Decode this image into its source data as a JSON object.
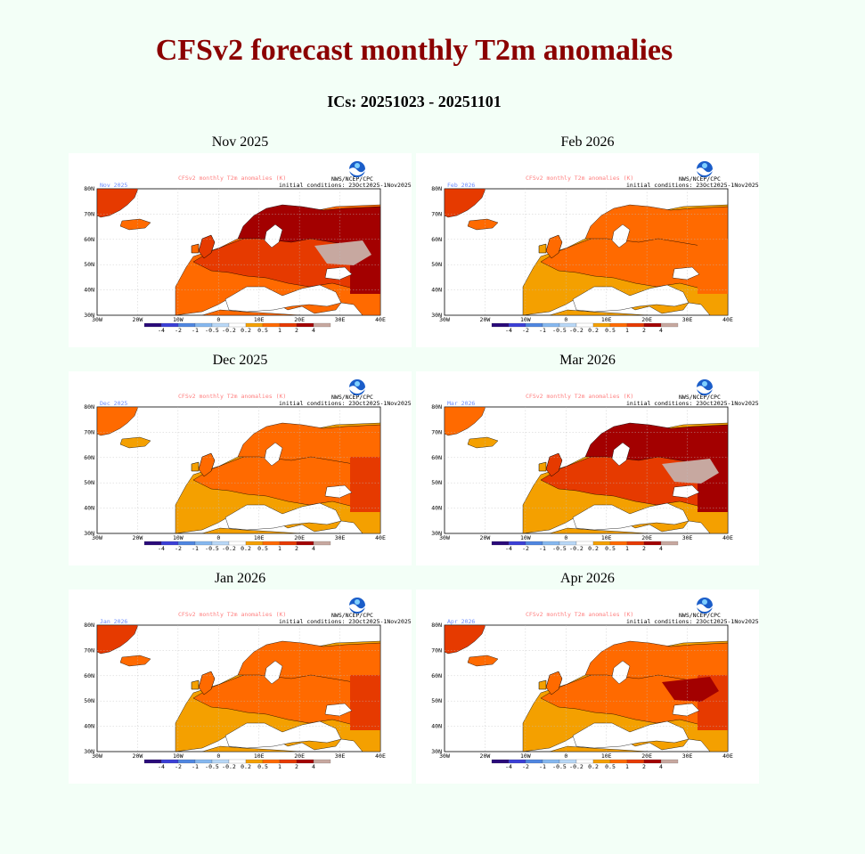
{
  "title": "CFSv2 forecast monthly T2m anomalies",
  "subtitle": "ICs: 20251023 - 20251101",
  "map_header": "CFSv2 monthly T2m anomalies (K)",
  "agency": "NWS/NCEP/CPC",
  "init_text": "initial conditions: 23Oct2025-1Nov2025",
  "lat_labels": [
    "80N",
    "70N",
    "60N",
    "50N",
    "40N",
    "30N"
  ],
  "lon_labels": [
    "30W",
    "20W",
    "10W",
    "0",
    "10E",
    "20E",
    "30E",
    "40E"
  ],
  "colorbar": {
    "labels": [
      "-4",
      "-2",
      "-1",
      "-0.5",
      "-0.2",
      "0.2",
      "0.5",
      "1",
      "2",
      "4"
    ],
    "colors": [
      "#2a0a7a",
      "#3b3fd6",
      "#4f86e0",
      "#86b8ef",
      "#b9d8f7",
      "#ffffff",
      "#f4a000",
      "#ff6a00",
      "#e63a00",
      "#a30000",
      "#c7a8a0"
    ]
  },
  "colors": {
    "title": "#8b0000",
    "background": "#f3fff7",
    "land_neutral": "#ffffff",
    "warm1": "#f4a000",
    "warm2": "#ff6a00",
    "warm3": "#e63a00",
    "warm4": "#a30000",
    "warm5": "#c7a8a0"
  },
  "panels": [
    {
      "label": "Nov 2025",
      "tag": "Nov 2025",
      "anomaly": {
        "south": 2,
        "central": 3,
        "north": 4,
        "east": 4,
        "iceland": 2,
        "hotspot": true
      }
    },
    {
      "label": "Feb 2026",
      "tag": "Feb 2026",
      "anomaly": {
        "south": 1,
        "central": 2,
        "north": 2,
        "east": 2,
        "iceland": 2,
        "hotspot": false
      }
    },
    {
      "label": "Dec 2025",
      "tag": "Dec 2025",
      "anomaly": {
        "south": 1,
        "central": 2,
        "north": 2,
        "east": 3,
        "iceland": 1,
        "hotspot": false
      }
    },
    {
      "label": "Mar 2026",
      "tag": "Mar 2026",
      "anomaly": {
        "south": 1,
        "central": 3,
        "north": 4,
        "east": 4,
        "iceland": 1,
        "hotspot": true
      }
    },
    {
      "label": "Jan 2026",
      "tag": "Jan 2026",
      "anomaly": {
        "south": 1,
        "central": 2,
        "north": 2,
        "east": 3,
        "iceland": 2,
        "hotspot": false
      }
    },
    {
      "label": "Apr 2026",
      "tag": "Apr 2026",
      "anomaly": {
        "south": 1,
        "central": 2,
        "north": 2,
        "east": 3,
        "iceland": 2,
        "hotspot": true
      }
    }
  ]
}
